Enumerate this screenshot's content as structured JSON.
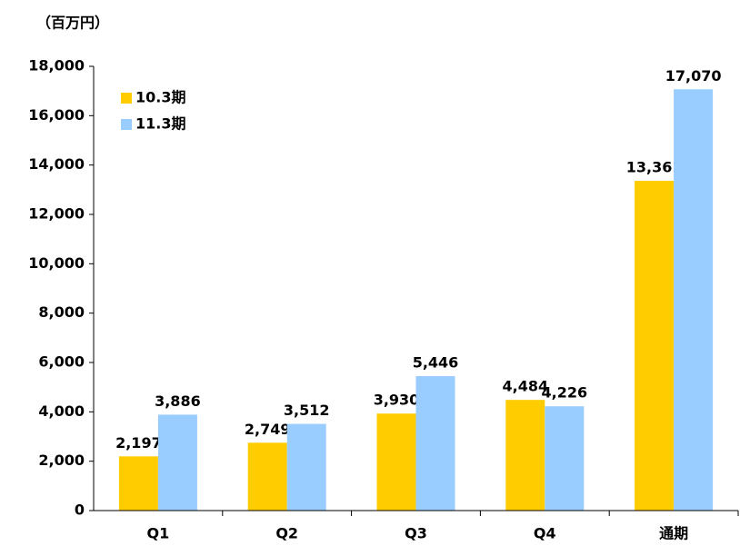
{
  "chart_data": {
    "type": "bar",
    "title": "（百万円）",
    "categories": [
      "Q1",
      "Q2",
      "Q3",
      "Q4",
      "通期"
    ],
    "series": [
      {
        "name": "10.3期",
        "color": "#FFCC00",
        "values": [
          2197,
          2749,
          3930,
          4484,
          13361
        ],
        "value_labels": [
          "2,197",
          "2,749",
          "3,930",
          "4,484",
          "13,361"
        ]
      },
      {
        "name": "11.3期",
        "color": "#99CCFF",
        "values": [
          3886,
          3512,
          5446,
          4226,
          17070
        ],
        "value_labels": [
          "3,886",
          "3,512",
          "5,446",
          "4,226",
          "17,070"
        ]
      }
    ],
    "ylim": [
      0,
      18000
    ],
    "yticks": [
      0,
      {
        "value": 2000,
        "label": "2,000"
      },
      {
        "value": 4000,
        "label": "4,000"
      },
      {
        "value": 6000,
        "label": "6,000"
      },
      {
        "value": 8000,
        "label": "8,000"
      },
      {
        "value": 10000,
        "label": "10,000"
      },
      {
        "value": 12000,
        "label": "12,000"
      },
      {
        "value": 14000,
        "label": "14,000"
      },
      {
        "value": 16000,
        "label": "16,000"
      },
      {
        "value": 18000,
        "label": "18,000"
      }
    ],
    "legend": "upper left"
  }
}
